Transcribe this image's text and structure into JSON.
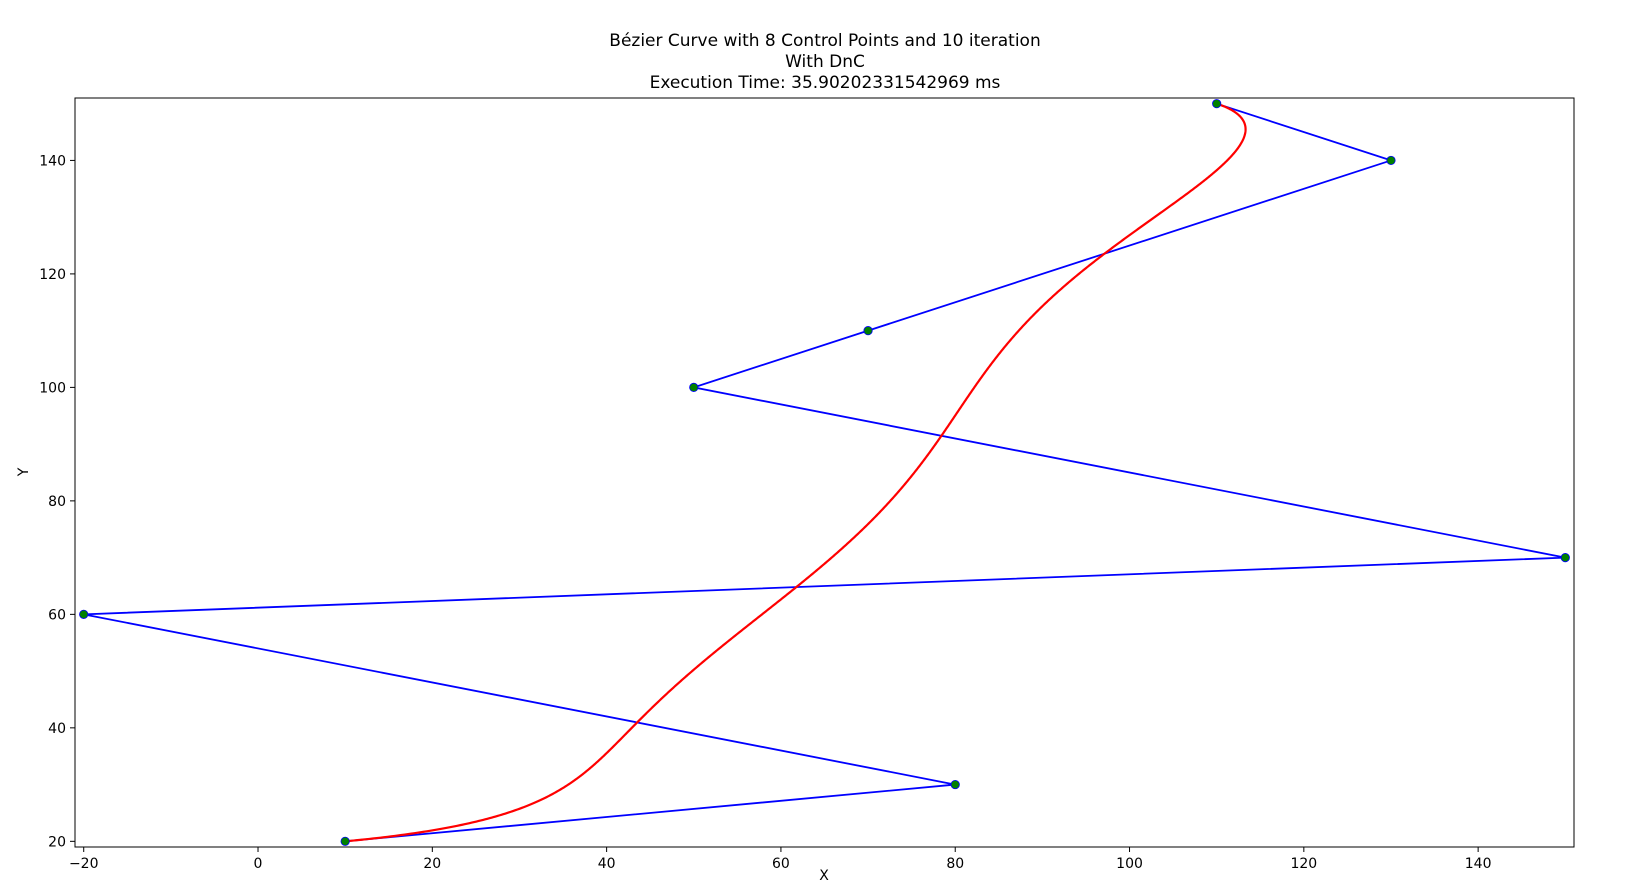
{
  "chart_data": {
    "type": "line",
    "title_lines": [
      "Bézier Curve with 8 Control Points and 10 iteration",
      "With DnC",
      "Execution Time: 35.90202331542969 ms"
    ],
    "xlabel": "X",
    "ylabel": "Y",
    "xlim": [
      -21,
      151
    ],
    "ylim": [
      19,
      151
    ],
    "xticks": [
      -20,
      0,
      20,
      40,
      60,
      80,
      100,
      120,
      140
    ],
    "yticks": [
      20,
      40,
      60,
      80,
      100,
      120,
      140
    ],
    "grid": false,
    "control_points": [
      [
        10,
        20
      ],
      [
        80,
        30
      ],
      [
        -20,
        60
      ],
      [
        150,
        70
      ],
      [
        50,
        100
      ],
      [
        70,
        110
      ],
      [
        130,
        140
      ],
      [
        110,
        150
      ]
    ],
    "series": [
      {
        "kind": "control-polygon",
        "color": "#0000ff"
      },
      {
        "kind": "bezier-curve",
        "color": "#ff0000",
        "iterations": 10
      }
    ],
    "marker_color": "#008000"
  }
}
